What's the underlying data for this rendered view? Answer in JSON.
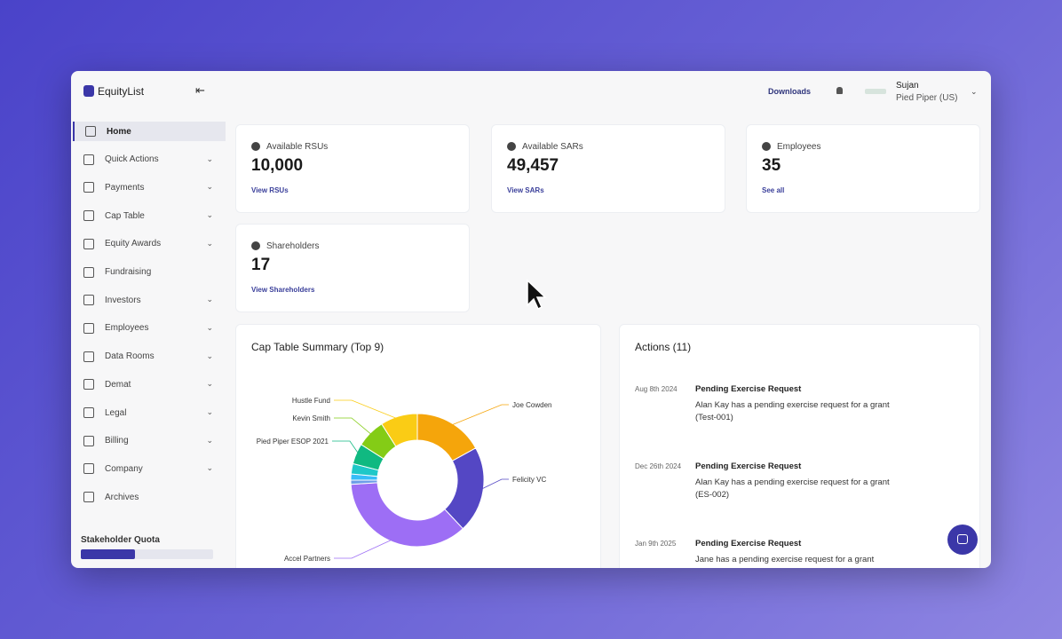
{
  "brand": "EquityList",
  "header": {
    "downloads": "Downloads",
    "user": "Sujan",
    "company": "Pied Piper (US)"
  },
  "sidebar": {
    "items": [
      {
        "label": "Home",
        "active": true,
        "expandable": false
      },
      {
        "label": "Quick Actions",
        "active": false,
        "expandable": true
      },
      {
        "label": "Payments",
        "active": false,
        "expandable": true
      },
      {
        "label": "Cap Table",
        "active": false,
        "expandable": true
      },
      {
        "label": "Equity Awards",
        "active": false,
        "expandable": true
      },
      {
        "label": "Fundraising",
        "active": false,
        "expandable": false
      },
      {
        "label": "Investors",
        "active": false,
        "expandable": true
      },
      {
        "label": "Employees",
        "active": false,
        "expandable": true
      },
      {
        "label": "Data Rooms",
        "active": false,
        "expandable": true
      },
      {
        "label": "Demat",
        "active": false,
        "expandable": true
      },
      {
        "label": "Legal",
        "active": false,
        "expandable": true
      },
      {
        "label": "Billing",
        "active": false,
        "expandable": true
      },
      {
        "label": "Company",
        "active": false,
        "expandable": true
      },
      {
        "label": "Archives",
        "active": false,
        "expandable": false
      }
    ],
    "quota_label": "Stakeholder Quota"
  },
  "stats": [
    {
      "label": "Available RSUs",
      "value": "10,000",
      "link": "View RSUs"
    },
    {
      "label": "Available SARs",
      "value": "49,457",
      "link": "View SARs"
    },
    {
      "label": "Employees",
      "value": "35",
      "link": "See all"
    },
    {
      "label": "Shareholders",
      "value": "17",
      "link": "View Shareholders"
    }
  ],
  "cap_table": {
    "title": "Cap Table Summary (Top 9)",
    "chart": {
      "type": "pie",
      "categories": [
        "Joe Cowden",
        "Felicity VC",
        "Accel Partners",
        null,
        null,
        null,
        "Pied Piper ESOP 2021",
        "Kevin Smith",
        "Hustle Fund"
      ],
      "values": [
        17,
        21,
        36,
        1,
        1.5,
        2.5,
        5,
        7,
        9
      ],
      "colors": [
        "#f5a50b",
        "#5447c4",
        "#9d6ef5",
        "#6d9ee8",
        "#38bdf8",
        "#1fc8c8",
        "#10b981",
        "#84cc16",
        "#facc15"
      ]
    }
  },
  "actions": {
    "title": "Actions (11)",
    "items": [
      {
        "date": "Aug 8th 2024",
        "title": "Pending Exercise Request",
        "text": "Alan Kay has a pending exercise request for a grant (Test-001)"
      },
      {
        "date": "Dec 26th 2024",
        "title": "Pending Exercise Request",
        "text": "Alan Kay has a pending exercise request for a grant (ES-002)"
      },
      {
        "date": "Jan 9th 2025",
        "title": "Pending Exercise Request",
        "text": "Jane has a pending exercise request for a grant"
      }
    ]
  }
}
